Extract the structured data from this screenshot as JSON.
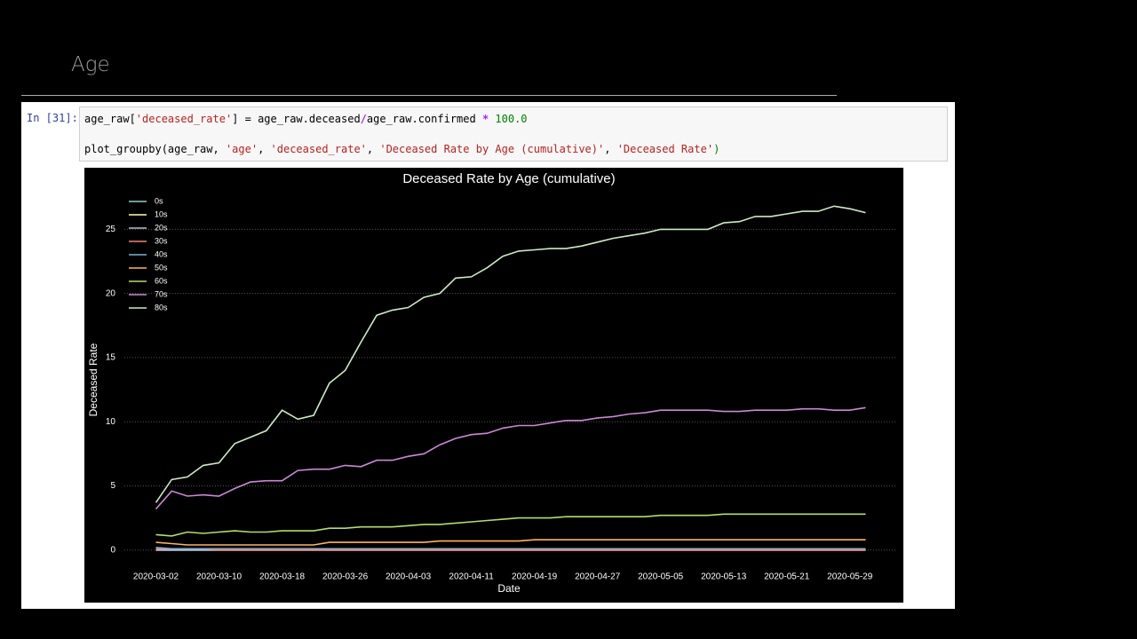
{
  "header": {
    "title": "Age"
  },
  "cell": {
    "prompt": "In [31]:",
    "line1": [
      "age_raw[",
      "'deceased_rate'",
      "] = age_raw.deceased",
      "/",
      "age_raw.confirmed ",
      "*",
      " 100.0"
    ],
    "line2": [
      "plot_groupby(age_raw, ",
      "'age'",
      ", ",
      "'deceased_rate'",
      ", ",
      "'Deceased Rate by Age (cumulative)'",
      ", ",
      "'Deceased Rate'",
      ")"
    ]
  },
  "chart_data": {
    "type": "line",
    "title": "Deceased Rate by Age (cumulative)",
    "xlabel": "Date",
    "ylabel": "Deceased Rate",
    "x": [
      "2020-03-02",
      "2020-03-04",
      "2020-03-06",
      "2020-03-08",
      "2020-03-10",
      "2020-03-12",
      "2020-03-14",
      "2020-03-16",
      "2020-03-18",
      "2020-03-20",
      "2020-03-22",
      "2020-03-24",
      "2020-03-26",
      "2020-03-28",
      "2020-03-30",
      "2020-04-01",
      "2020-04-03",
      "2020-04-05",
      "2020-04-07",
      "2020-04-09",
      "2020-04-11",
      "2020-04-13",
      "2020-04-15",
      "2020-04-17",
      "2020-04-19",
      "2020-04-21",
      "2020-04-23",
      "2020-04-25",
      "2020-04-27",
      "2020-04-29",
      "2020-05-01",
      "2020-05-03",
      "2020-05-05",
      "2020-05-07",
      "2020-05-09",
      "2020-05-11",
      "2020-05-13",
      "2020-05-15",
      "2020-05-17",
      "2020-05-19",
      "2020-05-21",
      "2020-05-23",
      "2020-05-25",
      "2020-05-27",
      "2020-05-29",
      "2020-05-31"
    ],
    "xlim": [
      "2020-02-27",
      "2020-06-04"
    ],
    "xticks": [
      "2020-03-02",
      "2020-03-10",
      "2020-03-18",
      "2020-03-26",
      "2020-04-03",
      "2020-04-11",
      "2020-04-19",
      "2020-04-27",
      "2020-05-05",
      "2020-05-13",
      "2020-05-21",
      "2020-05-29"
    ],
    "ylim": [
      -1.4,
      28
    ],
    "yticks": [
      0,
      5,
      10,
      15,
      20,
      25
    ],
    "grid": true,
    "legend": "upper left",
    "series": [
      {
        "name": "0s",
        "color": "#8dd3c7",
        "values": [
          0,
          0,
          0,
          0,
          0,
          0,
          0,
          0,
          0,
          0,
          0,
          0,
          0,
          0,
          0,
          0,
          0,
          0,
          0,
          0,
          0,
          0,
          0,
          0,
          0,
          0,
          0,
          0,
          0,
          0,
          0,
          0,
          0,
          0,
          0,
          0,
          0,
          0,
          0,
          0,
          0,
          0,
          0,
          0,
          0,
          0
        ]
      },
      {
        "name": "10s",
        "color": "#ffffb3",
        "values": [
          0,
          0,
          0,
          0,
          0,
          0,
          0,
          0,
          0,
          0,
          0,
          0,
          0,
          0,
          0,
          0,
          0,
          0,
          0,
          0,
          0,
          0,
          0,
          0,
          0,
          0,
          0,
          0,
          0,
          0,
          0,
          0,
          0,
          0,
          0,
          0,
          0,
          0,
          0,
          0,
          0,
          0,
          0,
          0,
          0,
          0
        ]
      },
      {
        "name": "20s",
        "color": "#bebada",
        "values": [
          0,
          0,
          0,
          0,
          0,
          0,
          0,
          0,
          0,
          0,
          0,
          0,
          0,
          0,
          0,
          0,
          0,
          0,
          0,
          0,
          0,
          0,
          0,
          0,
          0,
          0,
          0,
          0,
          0,
          0,
          0,
          0,
          0,
          0,
          0,
          0,
          0,
          0,
          0,
          0,
          0,
          0,
          0,
          0,
          0,
          0
        ]
      },
      {
        "name": "30s",
        "color": "#fb8072",
        "values": [
          0.1,
          0.1,
          0.1,
          0.1,
          0,
          0,
          0,
          0,
          0,
          0,
          0,
          0,
          0,
          0,
          0,
          0,
          0,
          0,
          0,
          0,
          0,
          0,
          0,
          0,
          0,
          0,
          0,
          0,
          0,
          0,
          0,
          0,
          0,
          0,
          0,
          0,
          0,
          0,
          0,
          0,
          0,
          0,
          0,
          0,
          0,
          0
        ]
      },
      {
        "name": "40s",
        "color": "#80b1d3",
        "values": [
          0.2,
          0.1,
          0.1,
          0.1,
          0.1,
          0.1,
          0.1,
          0.1,
          0.1,
          0.1,
          0.1,
          0.1,
          0.1,
          0.1,
          0.1,
          0.1,
          0.1,
          0.1,
          0.1,
          0.1,
          0.1,
          0.1,
          0.1,
          0.1,
          0.1,
          0.1,
          0.1,
          0.1,
          0.1,
          0.1,
          0.1,
          0.1,
          0.1,
          0.1,
          0.1,
          0.1,
          0.1,
          0.1,
          0.1,
          0.1,
          0.1,
          0.1,
          0.1,
          0.1,
          0.1,
          0.1
        ]
      },
      {
        "name": "50s",
        "color": "#fdb462",
        "values": [
          0.6,
          0.5,
          0.4,
          0.4,
          0.4,
          0.4,
          0.4,
          0.4,
          0.4,
          0.4,
          0.4,
          0.6,
          0.6,
          0.6,
          0.6,
          0.6,
          0.6,
          0.6,
          0.7,
          0.7,
          0.7,
          0.7,
          0.7,
          0.7,
          0.8,
          0.8,
          0.8,
          0.8,
          0.8,
          0.8,
          0.8,
          0.8,
          0.8,
          0.8,
          0.8,
          0.8,
          0.8,
          0.8,
          0.8,
          0.8,
          0.8,
          0.8,
          0.8,
          0.8,
          0.8,
          0.8
        ]
      },
      {
        "name": "60s",
        "color": "#b3de69",
        "values": [
          1.2,
          1.1,
          1.4,
          1.3,
          1.4,
          1.5,
          1.4,
          1.4,
          1.5,
          1.5,
          1.5,
          1.7,
          1.7,
          1.8,
          1.8,
          1.8,
          1.9,
          2.0,
          2.0,
          2.1,
          2.2,
          2.3,
          2.4,
          2.5,
          2.5,
          2.5,
          2.6,
          2.6,
          2.6,
          2.6,
          2.6,
          2.6,
          2.7,
          2.7,
          2.7,
          2.7,
          2.8,
          2.8,
          2.8,
          2.8,
          2.8,
          2.8,
          2.8,
          2.8,
          2.8,
          2.8
        ]
      },
      {
        "name": "70s",
        "color": "#cc88d6",
        "values": [
          3.2,
          4.6,
          4.2,
          4.3,
          4.2,
          4.8,
          5.3,
          5.4,
          5.4,
          6.2,
          6.3,
          6.3,
          6.6,
          6.5,
          7.0,
          7.0,
          7.3,
          7.5,
          8.2,
          8.7,
          9.0,
          9.1,
          9.5,
          9.7,
          9.7,
          9.9,
          10.1,
          10.1,
          10.3,
          10.4,
          10.6,
          10.7,
          10.9,
          10.9,
          10.9,
          10.9,
          10.8,
          10.8,
          10.9,
          10.9,
          10.9,
          11.0,
          11.0,
          10.9,
          10.9,
          11.1
        ]
      },
      {
        "name": "80s",
        "color": "#ccebc5",
        "values": [
          3.7,
          5.5,
          5.7,
          6.6,
          6.8,
          8.3,
          8.8,
          9.3,
          10.9,
          10.2,
          10.5,
          13.0,
          14.0,
          16.2,
          18.3,
          18.7,
          18.9,
          19.7,
          20.0,
          21.2,
          21.3,
          22.0,
          22.9,
          23.3,
          23.4,
          23.5,
          23.5,
          23.7,
          24.0,
          24.3,
          24.5,
          24.7,
          25.0,
          25.0,
          25.0,
          25.0,
          25.5,
          25.6,
          26.0,
          26.0,
          26.2,
          26.4,
          26.4,
          26.8,
          26.6,
          26.3
        ]
      }
    ]
  }
}
